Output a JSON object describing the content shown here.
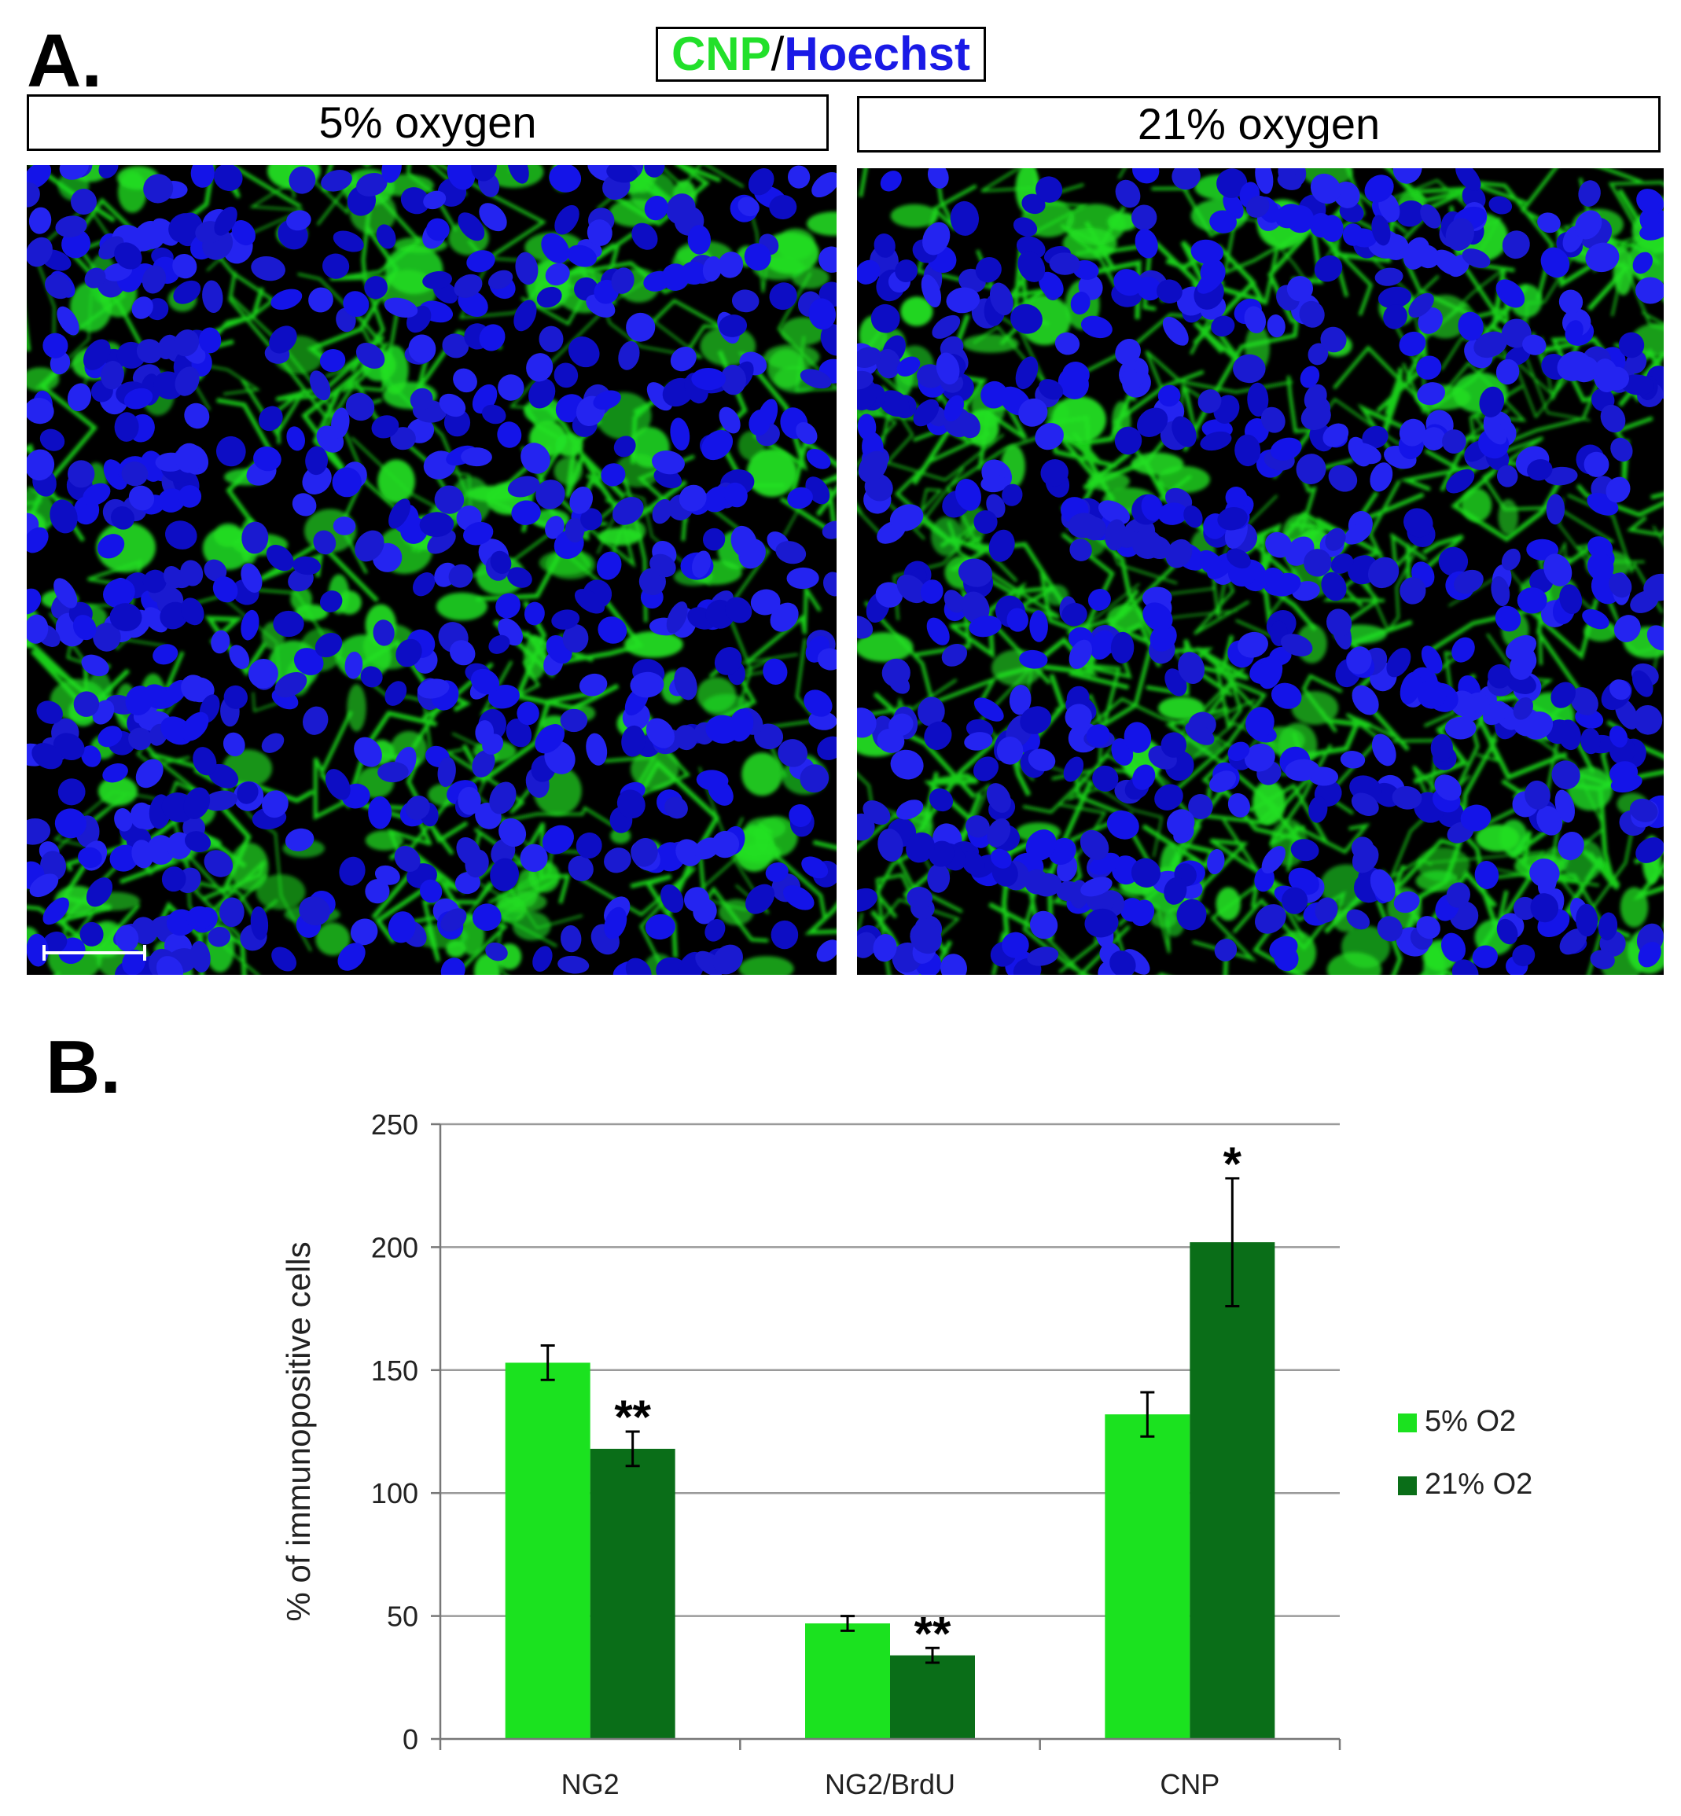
{
  "panel_a": {
    "label": "A.",
    "stain": {
      "cnp": "CNP",
      "separator": "/",
      "hoechst": "Hoechst"
    },
    "conditions": [
      "5% oxygen",
      "21% oxygen"
    ]
  },
  "panel_b": {
    "label": "B."
  },
  "colors": {
    "five_percent": "#1be21f",
    "twentyone_percent": "#0a6e18",
    "cnp_stain": "#22e02a",
    "hoechst_stain": "#1a1ae6"
  },
  "chart_data": {
    "type": "bar",
    "categories": [
      "NG2",
      "NG2/BrdU",
      "CNP"
    ],
    "series": [
      {
        "name": "5% O2",
        "values": [
          153,
          47,
          132
        ],
        "errors": [
          7,
          3,
          9
        ]
      },
      {
        "name": "21% O2",
        "values": [
          118,
          34,
          202
        ],
        "errors": [
          7,
          3,
          26
        ]
      }
    ],
    "significance": [
      "**",
      "**",
      "*"
    ],
    "ylabel": "% of immunopositive cells",
    "xlabel": "",
    "ylim": [
      0,
      250
    ],
    "yticks": [
      "0",
      "50",
      "100",
      "150",
      "200",
      "250"
    ],
    "grid": true,
    "legend_position": "right"
  }
}
